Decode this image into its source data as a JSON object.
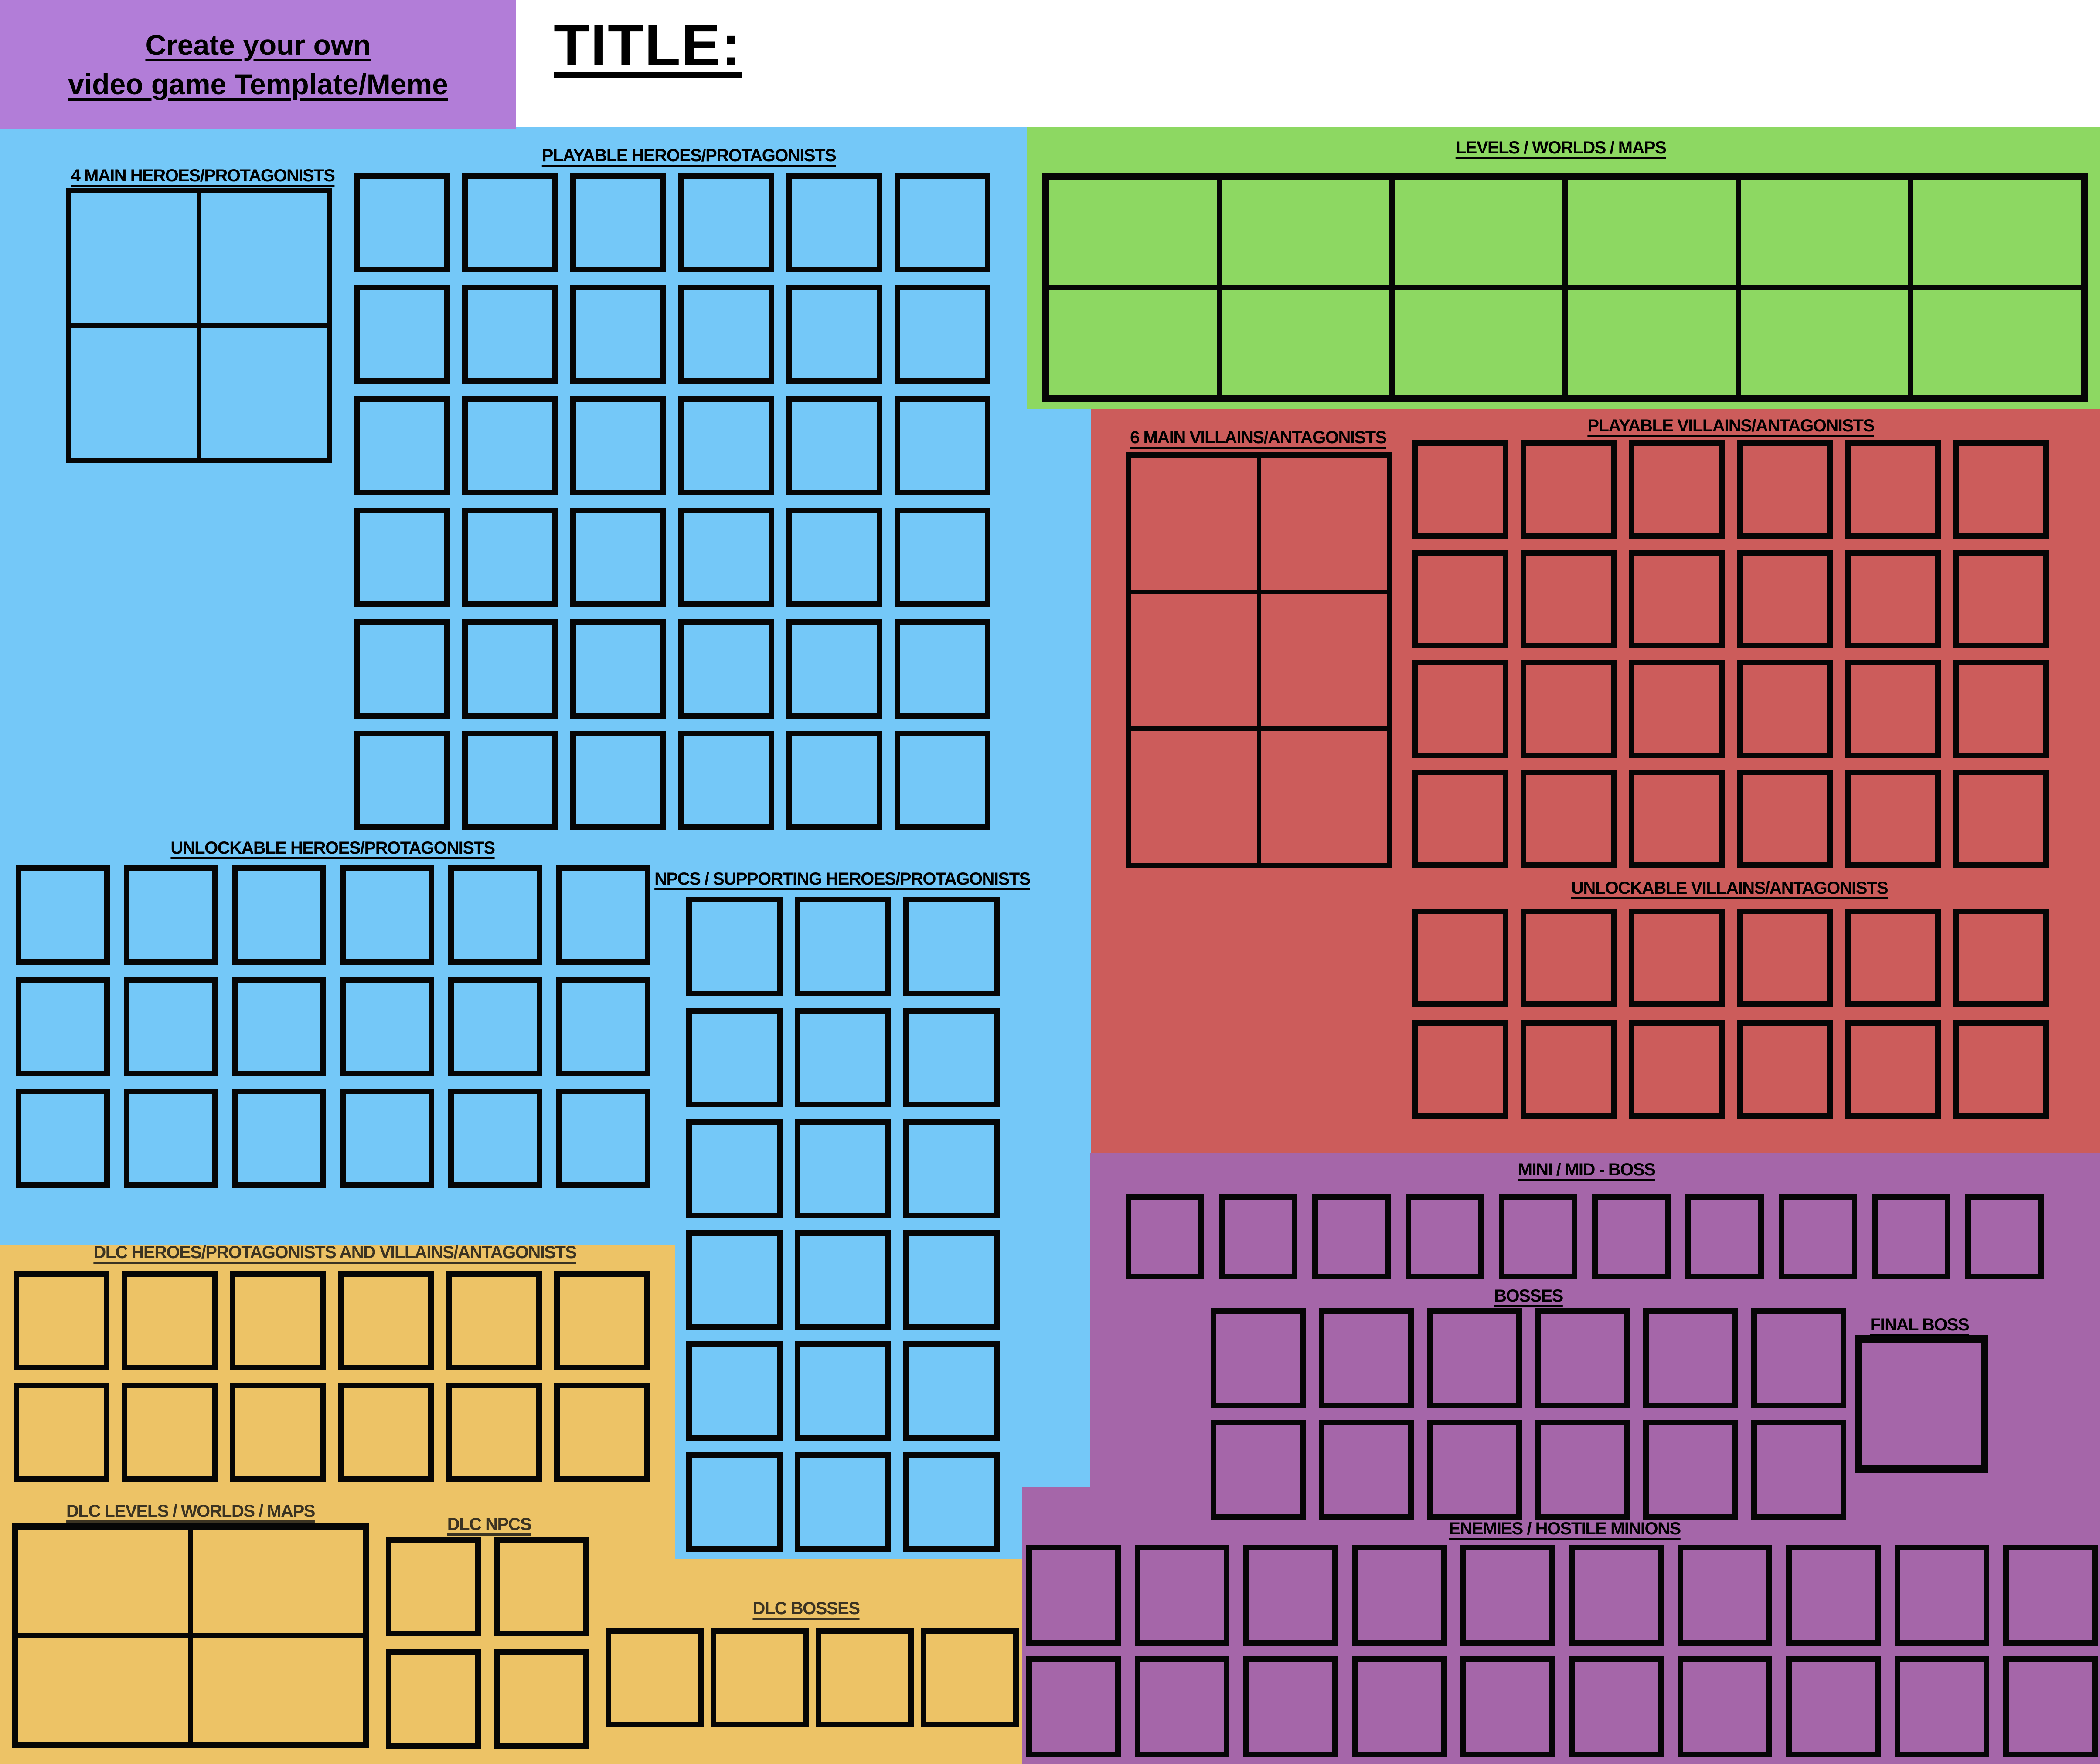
{
  "header": {
    "line1": "Create your own",
    "line2": "video game Template/Meme",
    "title_label": "TITLE:"
  },
  "colors": {
    "blue": "#74C8F8",
    "green": "#8DD862",
    "red": "#CC5C5B",
    "purple": "#A566A9",
    "orange": "#EDC366",
    "header_purple": "#B27DD8",
    "dlc_text": "#3B3322"
  },
  "sections": {
    "main_heroes": {
      "label": "4 MAIN HEROES/PROTAGONISTS",
      "grid": {
        "rows": 2,
        "cols": 2
      }
    },
    "playable_heroes": {
      "label": "PLAYABLE HEROES/PROTAGONISTS",
      "grid": {
        "rows": 6,
        "cols": 6
      }
    },
    "unlockable_heroes": {
      "label": "UNLOCKABLE HEROES/PROTAGONISTS",
      "grid": {
        "rows": 3,
        "cols": 6
      }
    },
    "npcs": {
      "label": "NPCS / SUPPORTING HEROES/PROTAGONISTS",
      "grid": {
        "rows": 6,
        "cols": 3
      }
    },
    "levels": {
      "label": "LEVELS / WORLDS / MAPS",
      "grid": {
        "rows": 2,
        "cols": 6
      }
    },
    "main_villains": {
      "label": "6 MAIN VILLAINS/ANTAGONISTS",
      "grid": {
        "rows": 3,
        "cols": 2
      }
    },
    "playable_villains": {
      "label": "PLAYABLE VILLAINS/ANTAGONISTS",
      "grid": {
        "rows": 4,
        "cols": 6
      }
    },
    "unlockable_villains": {
      "label": "UNLOCKABLE VILLAINS/ANTAGONISTS",
      "grid": {
        "rows": 2,
        "cols": 6
      }
    },
    "mini_boss": {
      "label": "MINI / MID - BOSS",
      "grid": {
        "rows": 1,
        "cols": 10
      }
    },
    "bosses": {
      "label": "BOSSES",
      "grid": {
        "rows": 2,
        "cols": 6
      }
    },
    "final_boss": {
      "label": "FINAL BOSS",
      "grid": {
        "rows": 1,
        "cols": 1
      }
    },
    "enemies": {
      "label": "ENEMIES / HOSTILE MINIONS",
      "grid": {
        "rows": 2,
        "cols": 10
      }
    },
    "dlc_heroes": {
      "label": "DLC HEROES/PROTAGONISTS AND VILLAINS/ANTAGONISTS",
      "grid": {
        "rows": 2,
        "cols": 6
      }
    },
    "dlc_levels": {
      "label": "DLC LEVELS / WORLDS / MAPS",
      "grid": {
        "rows": 2,
        "cols": 2
      }
    },
    "dlc_npcs": {
      "label": "DLC NPCS",
      "grid": {
        "rows": 2,
        "cols": 2
      }
    },
    "dlc_bosses": {
      "label": "DLC BOSSES",
      "grid": {
        "rows": 1,
        "cols": 4
      }
    }
  }
}
